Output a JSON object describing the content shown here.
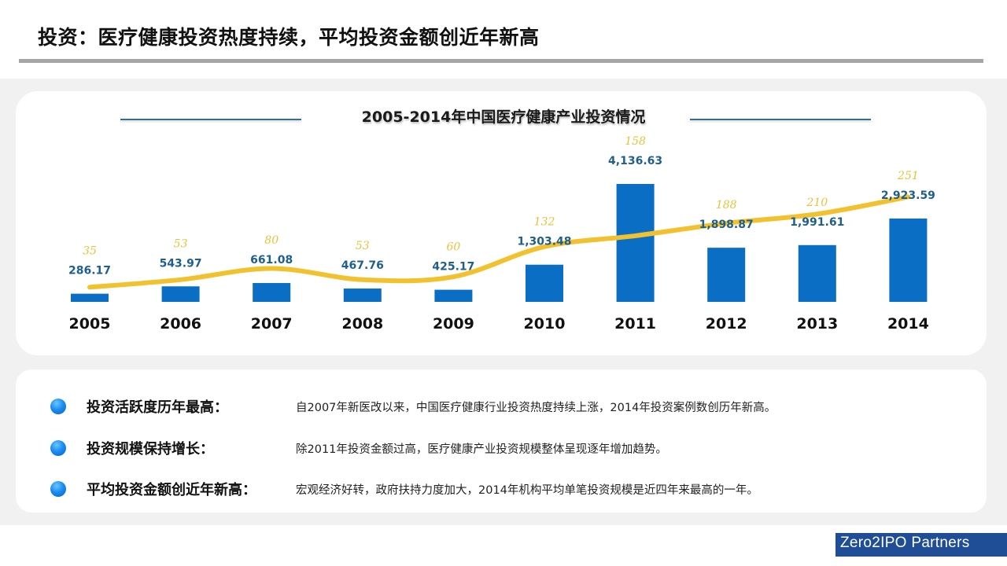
{
  "page": {
    "title": "投资：医疗健康投资热度持续，平均投资金额创近年新高",
    "brand": "Zero2IPO Partners"
  },
  "colors": {
    "bar": "#0a6ec5",
    "line": "#f2c12e",
    "bar_label": "#1f5f8b",
    "line_label": "#e6c33a",
    "brand_bg": "#1f4e96"
  },
  "chart_data": {
    "type": "bar+line",
    "title": "2005-2014年中国医疗健康产业投资情况",
    "categories": [
      "2005",
      "2006",
      "2007",
      "2008",
      "2009",
      "2010",
      "2011",
      "2012",
      "2013",
      "2014"
    ],
    "series": [
      {
        "name": "investment_amount",
        "type": "bar",
        "values": [
          286.17,
          543.97,
          661.08,
          467.76,
          425.17,
          1303.48,
          4136.63,
          1898.87,
          1991.61,
          2923.59
        ],
        "labels": [
          "286.17",
          "543.97",
          "661.08",
          "467.76",
          "425.17",
          "1,303.48",
          "4,136.63",
          "1,898.87",
          "1,991.61",
          "2,923.59"
        ]
      },
      {
        "name": "investment_cases",
        "type": "line",
        "values": [
          35,
          53,
          80,
          53,
          60,
          132,
          158,
          188,
          210,
          251
        ],
        "labels": [
          "35",
          "53",
          "80",
          "53",
          "60",
          "132",
          "158",
          "188",
          "210",
          "251"
        ]
      }
    ],
    "xlabel": "",
    "ylabel": "",
    "grid": false,
    "legend": "none"
  },
  "summary": {
    "items": [
      {
        "heading": "投资活跃度历年最高：",
        "text": "自2007年新医改以来，中国医疗健康行业投资热度持续上涨，2014年投资案例数创历年新高。"
      },
      {
        "heading": "投资规模保持增长：",
        "text": "除2011年投资金额过高，医疗健康产业投资规模整体呈现逐年增加趋势。"
      },
      {
        "heading": "平均投资金额创近年新高：",
        "text": "宏观经济好转，政府扶持力度加大，2014年机构平均单笔投资规模是近四年来最高的一年。"
      }
    ]
  }
}
